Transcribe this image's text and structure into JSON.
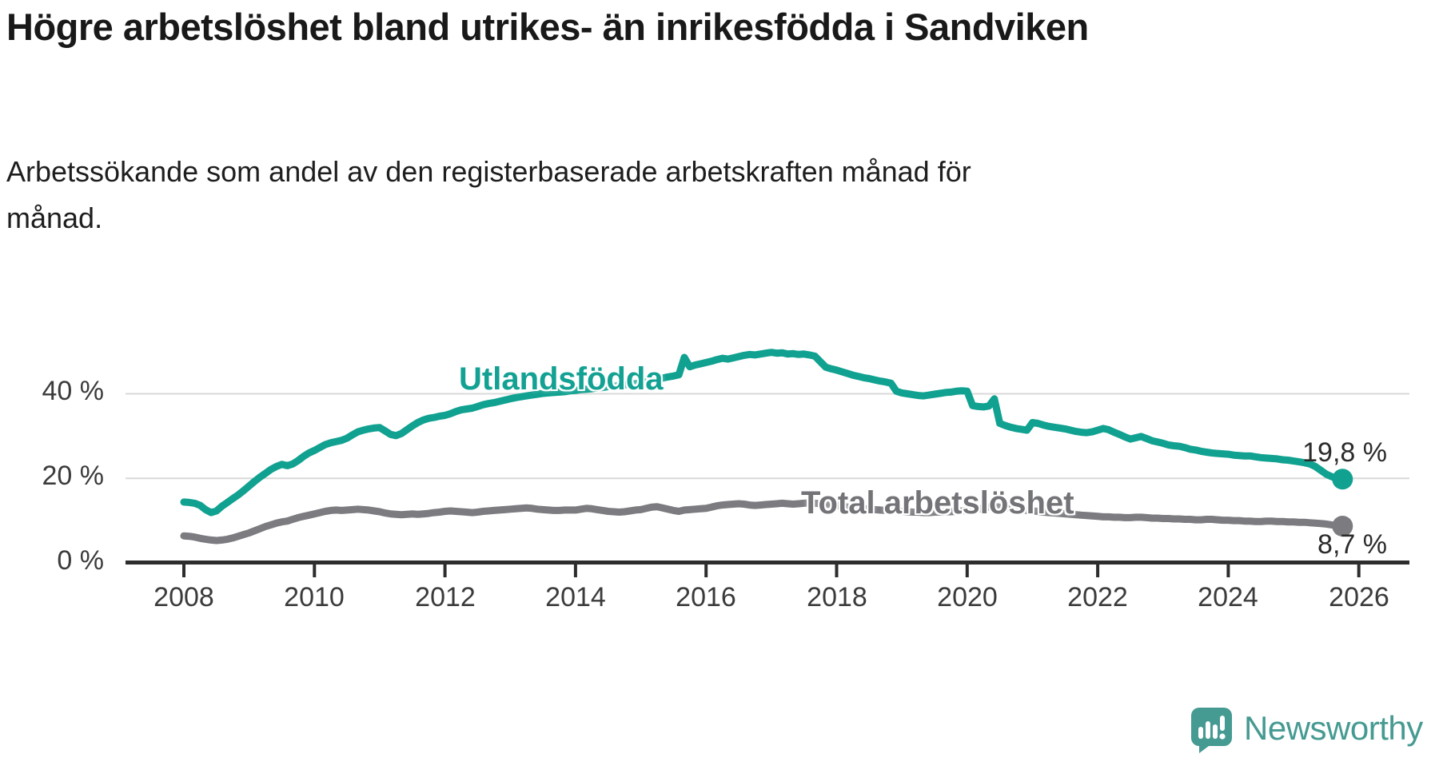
{
  "title": "Högre arbetslöshet bland utrikes- än inrikesfödda i Sandviken",
  "subtitle": "Arbetssökande som andel av den registerbaserade arbetskraften månad för månad.",
  "footer": {
    "brand": "Newsworthy"
  },
  "colors": {
    "teal": "#10a190",
    "gray": "#7b7b80",
    "teal_label": "#12a192",
    "gray_label": "#737378",
    "grid": "#d9d9d9",
    "axis": "#2d2d2d"
  },
  "chart_data": {
    "type": "line",
    "frequency": "monthly",
    "x_start": "2008-01",
    "x_end": "2025-10",
    "grid": "horizontal-only",
    "ylim": [
      0,
      52
    ],
    "y_ticks": [
      0,
      20,
      40
    ],
    "y_tick_labels": [
      "0 %",
      "20 %",
      "40 %"
    ],
    "x_tick_labels": [
      "2008",
      "2010",
      "2012",
      "2014",
      "2016",
      "2018",
      "2020",
      "2022",
      "2024",
      "2026"
    ],
    "series": [
      {
        "name": "Total arbetslöshet",
        "color": "#7b7b80",
        "end_label": "8,7 %",
        "last_value": 8.7,
        "values": [
          6.4,
          6.3,
          6.1,
          5.8,
          5.6,
          5.4,
          5.3,
          5.4,
          5.6,
          5.9,
          6.3,
          6.7,
          7.1,
          7.6,
          8.1,
          8.6,
          9.0,
          9.4,
          9.7,
          9.9,
          10.3,
          10.7,
          11.0,
          11.3,
          11.6,
          11.9,
          12.2,
          12.4,
          12.5,
          12.4,
          12.5,
          12.6,
          12.7,
          12.6,
          12.5,
          12.3,
          12.1,
          11.8,
          11.6,
          11.5,
          11.4,
          11.5,
          11.6,
          11.5,
          11.6,
          11.7,
          11.9,
          12.0,
          12.2,
          12.3,
          12.2,
          12.1,
          12.0,
          11.9,
          12.0,
          12.2,
          12.3,
          12.4,
          12.5,
          12.6,
          12.7,
          12.8,
          12.9,
          13.0,
          12.9,
          12.7,
          12.6,
          12.5,
          12.4,
          12.4,
          12.5,
          12.5,
          12.5,
          12.7,
          12.9,
          12.8,
          12.6,
          12.4,
          12.2,
          12.1,
          12.0,
          12.1,
          12.3,
          12.5,
          12.6,
          12.9,
          13.2,
          13.3,
          13.0,
          12.7,
          12.4,
          12.2,
          12.5,
          12.6,
          12.7,
          12.8,
          12.9,
          13.2,
          13.5,
          13.7,
          13.8,
          13.9,
          14.0,
          13.9,
          13.7,
          13.6,
          13.7,
          13.8,
          13.9,
          14.0,
          14.1,
          14.0,
          13.9,
          14.0,
          14.1,
          14.2,
          14.1,
          14.0,
          13.9,
          13.8,
          13.6,
          13.4,
          13.2,
          13.0,
          12.9,
          12.8,
          12.7,
          12.6,
          12.5,
          12.4,
          12.3,
          12.3,
          12.2,
          12.1,
          12.0,
          12.0,
          11.9,
          11.9,
          12.0,
          12.0,
          12.1,
          12.1,
          12.2,
          12.3,
          12.4,
          12.5,
          12.7,
          13.0,
          13.2,
          13.3,
          13.2,
          13.1,
          12.9,
          12.7,
          12.5,
          12.4,
          12.3,
          12.2,
          12.0,
          11.9,
          11.8,
          11.7,
          11.6,
          11.5,
          11.4,
          11.3,
          11.2,
          11.1,
          11.0,
          10.9,
          10.9,
          10.8,
          10.8,
          10.7,
          10.7,
          10.8,
          10.8,
          10.7,
          10.6,
          10.6,
          10.5,
          10.5,
          10.4,
          10.4,
          10.3,
          10.3,
          10.2,
          10.2,
          10.3,
          10.3,
          10.2,
          10.1,
          10.1,
          10.0,
          10.0,
          9.9,
          9.9,
          9.8,
          9.8,
          9.9,
          9.9,
          9.8,
          9.8,
          9.7,
          9.7,
          9.6,
          9.6,
          9.5,
          9.4,
          9.3,
          9.2,
          9.0,
          8.8,
          8.7
        ]
      },
      {
        "name": "Utlandsfödda",
        "color": "#10a190",
        "end_label": "19,8 %",
        "last_value": 19.8,
        "values": [
          14.4,
          14.3,
          14.1,
          13.6,
          12.6,
          11.9,
          12.3,
          13.4,
          14.3,
          15.2,
          16.1,
          17.1,
          18.2,
          19.3,
          20.3,
          21.2,
          22.1,
          22.8,
          23.3,
          23.0,
          23.4,
          24.2,
          25.2,
          26.0,
          26.6,
          27.3,
          28.0,
          28.4,
          28.7,
          29.0,
          29.5,
          30.3,
          31.0,
          31.4,
          31.7,
          31.9,
          32.0,
          31.2,
          30.4,
          30.1,
          30.6,
          31.5,
          32.4,
          33.2,
          33.8,
          34.2,
          34.4,
          34.7,
          34.9,
          35.3,
          35.8,
          36.2,
          36.4,
          36.6,
          37.0,
          37.4,
          37.7,
          37.9,
          38.2,
          38.5,
          38.8,
          39.1,
          39.3,
          39.5,
          39.7,
          39.9,
          40.1,
          40.2,
          40.3,
          40.4,
          40.5,
          40.7,
          40.8,
          41.0,
          41.1,
          41.2,
          41.4,
          41.5,
          41.7,
          41.8,
          41.9,
          42.1,
          42.3,
          42.4,
          42.6,
          42.9,
          43.2,
          43.4,
          43.7,
          44.0,
          44.2,
          44.5,
          48.6,
          46.4,
          46.8,
          47.1,
          47.4,
          47.7,
          48.1,
          48.4,
          48.2,
          48.5,
          48.8,
          49.1,
          49.3,
          49.2,
          49.4,
          49.6,
          49.8,
          49.6,
          49.7,
          49.4,
          49.5,
          49.3,
          49.4,
          49.2,
          48.9,
          47.6,
          46.3,
          45.9,
          45.6,
          45.2,
          44.8,
          44.4,
          44.1,
          43.8,
          43.6,
          43.3,
          43.0,
          42.8,
          42.5,
          40.6,
          40.2,
          40.0,
          39.8,
          39.6,
          39.5,
          39.7,
          39.9,
          40.1,
          40.3,
          40.4,
          40.6,
          40.7,
          40.6,
          37.2,
          37.0,
          36.9,
          37.1,
          38.8,
          33.0,
          32.5,
          32.1,
          31.8,
          31.6,
          31.4,
          33.2,
          33.0,
          32.6,
          32.3,
          32.1,
          31.9,
          31.7,
          31.4,
          31.1,
          30.9,
          30.8,
          31.0,
          31.4,
          31.8,
          31.5,
          30.9,
          30.4,
          29.8,
          29.3,
          29.6,
          29.9,
          29.4,
          28.9,
          28.6,
          28.3,
          27.9,
          27.7,
          27.6,
          27.3,
          26.9,
          26.7,
          26.4,
          26.2,
          26.0,
          25.9,
          25.8,
          25.7,
          25.5,
          25.4,
          25.3,
          25.3,
          25.1,
          24.9,
          24.8,
          24.7,
          24.6,
          24.4,
          24.3,
          24.1,
          23.9,
          23.7,
          23.4,
          22.8,
          21.9,
          21.0,
          20.4,
          20.0,
          19.8
        ]
      }
    ]
  }
}
